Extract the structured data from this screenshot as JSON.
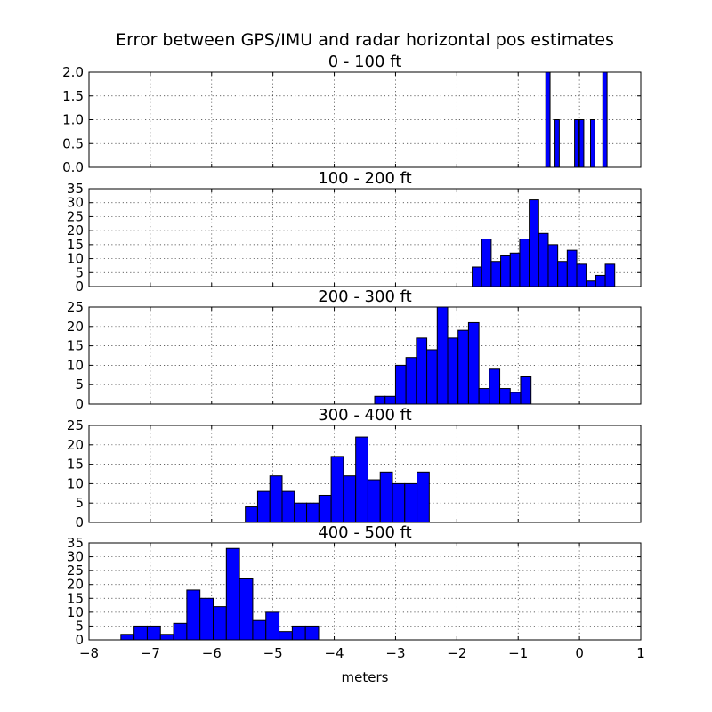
{
  "chart_data": {
    "type": "bar",
    "title": "Error between GPS/IMU and radar horizontal pos estimates",
    "xlabel": "meters",
    "xlim": [
      -8,
      1
    ],
    "xticks": [
      "−8",
      "−7",
      "−6",
      "−5",
      "−4",
      "−3",
      "−2",
      "−1",
      "0",
      "1"
    ],
    "bar_color": "#0000ff",
    "grid": true,
    "subplots": [
      {
        "title": "0 - 100 ft",
        "ylim": [
          0,
          2
        ],
        "yticks": [
          "0.0",
          "0.5",
          "1.0",
          "1.5",
          "2.0"
        ],
        "bin_width": 0.07,
        "bin_starts": [
          -0.55,
          -0.4,
          -0.08,
          0.0,
          0.18,
          0.38
        ],
        "values": [
          2,
          1,
          1,
          1,
          1,
          2
        ]
      },
      {
        "title": "100 - 200 ft",
        "ylim": [
          0,
          35
        ],
        "yticks": [
          "0",
          "5",
          "10",
          "15",
          "20",
          "25",
          "30",
          "35"
        ],
        "bin_width": 0.155,
        "bin_starts": [
          -1.75,
          -1.595,
          -1.44,
          -1.285,
          -1.13,
          -0.975,
          -0.82,
          -0.665,
          -0.51,
          -0.355,
          -0.2,
          -0.045,
          0.11,
          0.265,
          0.42,
          0.575
        ],
        "values": [
          7,
          17,
          9,
          11,
          12,
          17,
          31,
          19,
          15,
          9,
          13,
          8,
          2,
          4,
          8,
          0
        ]
      },
      {
        "title": "200 - 300 ft",
        "ylim": [
          0,
          25
        ],
        "yticks": [
          "0",
          "5",
          "10",
          "15",
          "20",
          "25"
        ],
        "bin_width": 0.17,
        "bin_starts": [
          -3.34,
          -3.17,
          -3.0,
          -2.83,
          -2.66,
          -2.49,
          -2.32,
          -2.15,
          -1.98,
          -1.81,
          -1.64,
          -1.47,
          -1.3,
          -1.13,
          -0.96,
          -0.79
        ],
        "values": [
          2,
          2,
          10,
          12,
          17,
          14,
          25,
          17,
          19,
          21,
          4,
          9,
          4,
          3,
          7,
          0
        ]
      },
      {
        "title": "300 - 400 ft",
        "ylim": [
          0,
          25
        ],
        "yticks": [
          "0",
          "5",
          "10",
          "15",
          "20",
          "25"
        ],
        "bin_width": 0.2,
        "bin_starts": [
          -5.45,
          -5.25,
          -5.05,
          -4.85,
          -4.65,
          -4.45,
          -4.25,
          -4.05,
          -3.85,
          -3.65,
          -3.45,
          -3.25,
          -3.05,
          -2.85,
          -2.65
        ],
        "values": [
          4,
          8,
          12,
          8,
          5,
          5,
          7,
          17,
          12,
          22,
          11,
          13,
          10,
          10,
          13
        ]
      },
      {
        "title": "400 - 500 ft",
        "ylim": [
          0,
          35
        ],
        "yticks": [
          "0",
          "5",
          "10",
          "15",
          "20",
          "25",
          "30",
          "35"
        ],
        "bin_width": 0.215,
        "bin_starts": [
          -7.48,
          -7.265,
          -7.05,
          -6.835,
          -6.62,
          -6.405,
          -6.19,
          -5.975,
          -5.76,
          -5.545,
          -5.33,
          -5.115,
          -4.9,
          -4.685,
          -4.47,
          -4.255
        ],
        "values": [
          2,
          5,
          5,
          2,
          6,
          18,
          15,
          12,
          33,
          22,
          7,
          10,
          3,
          5,
          5,
          0
        ]
      }
    ]
  }
}
